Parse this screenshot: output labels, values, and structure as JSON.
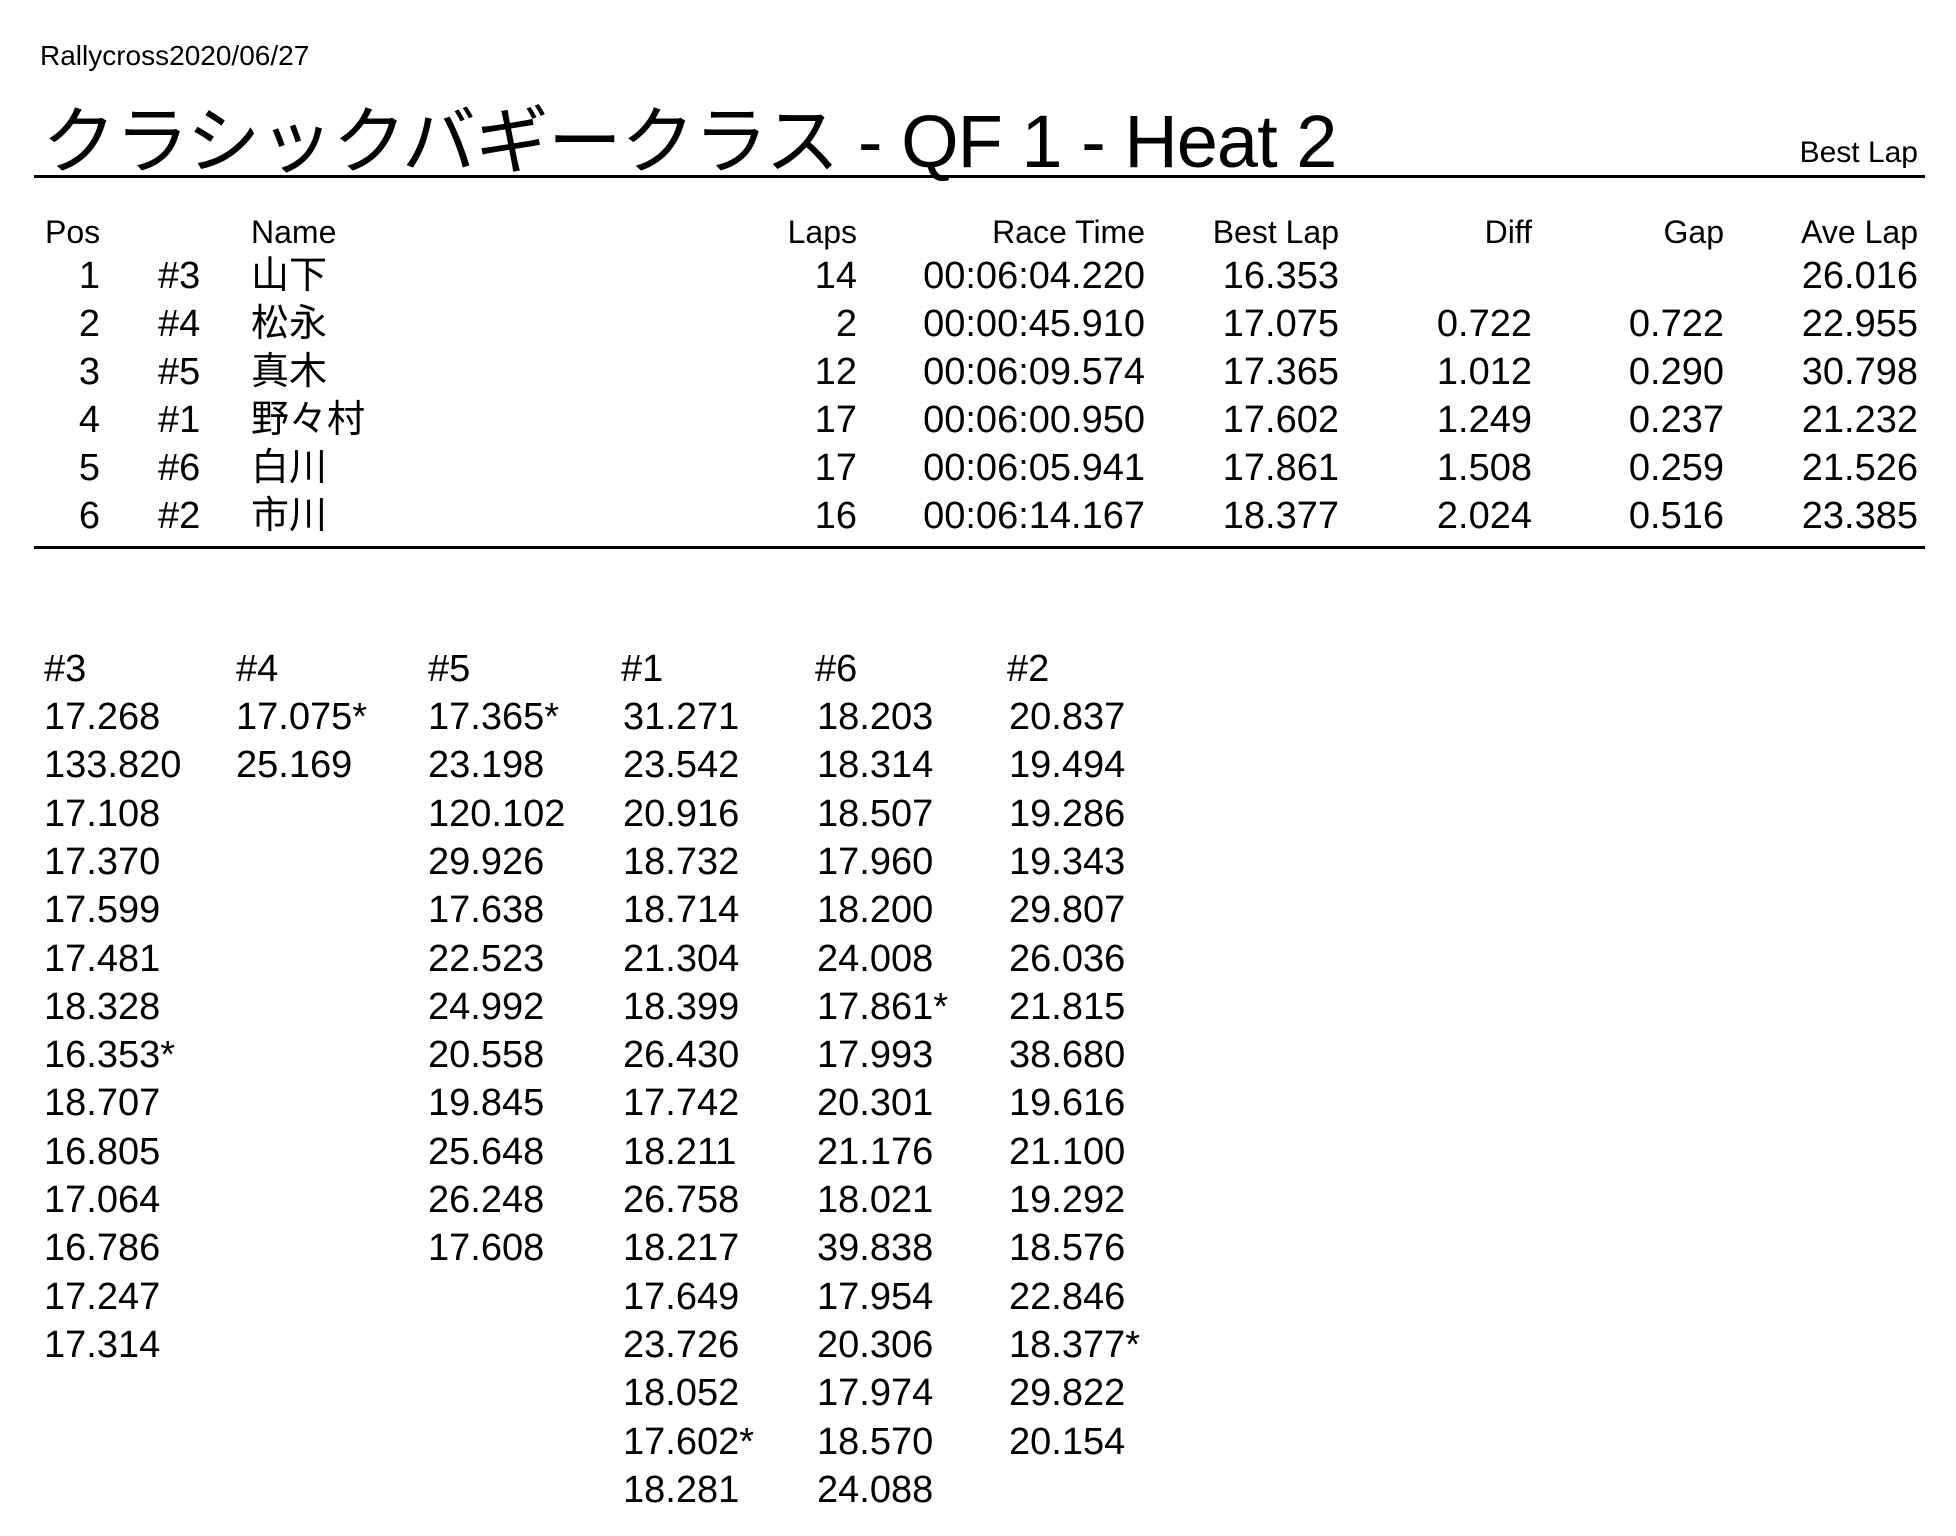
{
  "event": "Rallycross2020/06/27",
  "title": "クラシックバギークラス  -  QF 1  -  Heat 2",
  "sort_label": "Best Lap",
  "results": {
    "headers": {
      "pos": "Pos",
      "name": "Name",
      "laps": "Laps",
      "race_time": "Race Time",
      "best_lap": "Best Lap",
      "diff": "Diff",
      "gap": "Gap",
      "ave_lap": "Ave Lap"
    },
    "rows": [
      {
        "pos": "1",
        "num": "#3",
        "name": "山下",
        "laps": "14",
        "race_time": "00:06:04.220",
        "best_lap": "16.353",
        "diff": "",
        "gap": "",
        "ave_lap": "26.016"
      },
      {
        "pos": "2",
        "num": "#4",
        "name": "松永",
        "laps": "2",
        "race_time": "00:00:45.910",
        "best_lap": "17.075",
        "diff": "0.722",
        "gap": "0.722",
        "ave_lap": "22.955"
      },
      {
        "pos": "3",
        "num": "#5",
        "name": "真木",
        "laps": "12",
        "race_time": "00:06:09.574",
        "best_lap": "17.365",
        "diff": "1.012",
        "gap": "0.290",
        "ave_lap": "30.798"
      },
      {
        "pos": "4",
        "num": "#1",
        "name": "野々村",
        "laps": "17",
        "race_time": "00:06:00.950",
        "best_lap": "17.602",
        "diff": "1.249",
        "gap": "0.237",
        "ave_lap": "21.232"
      },
      {
        "pos": "5",
        "num": "#6",
        "name": "白川",
        "laps": "17",
        "race_time": "00:06:05.941",
        "best_lap": "17.861",
        "diff": "1.508",
        "gap": "0.259",
        "ave_lap": "21.526"
      },
      {
        "pos": "6",
        "num": "#2",
        "name": "市川",
        "laps": "16",
        "race_time": "00:06:14.167",
        "best_lap": "18.377",
        "diff": "2.024",
        "gap": "0.516",
        "ave_lap": "23.385"
      }
    ]
  },
  "lap_times": [
    {
      "car": "#3",
      "laps": [
        "17.268",
        "133.820",
        "17.108",
        "17.370",
        "17.599",
        "17.481",
        "18.328",
        "16.353*",
        "18.707",
        "16.805",
        "17.064",
        "16.786",
        "17.247",
        "17.314"
      ]
    },
    {
      "car": "#4",
      "laps": [
        "17.075*",
        "25.169"
      ]
    },
    {
      "car": "#5",
      "laps": [
        "17.365*",
        "23.198",
        "120.102",
        "29.926",
        "17.638",
        "22.523",
        "24.992",
        "20.558",
        "19.845",
        "25.648",
        "26.248",
        "17.608"
      ]
    },
    {
      "car": "#1",
      "laps": [
        "31.271",
        "23.542",
        "20.916",
        "18.732",
        "18.714",
        "21.304",
        "18.399",
        "26.430",
        "17.742",
        "18.211",
        "26.758",
        "18.217",
        "17.649",
        "23.726",
        "18.052",
        "17.602*",
        "18.281"
      ]
    },
    {
      "car": "#6",
      "laps": [
        "18.203",
        "18.314",
        "18.507",
        "17.960",
        "18.200",
        "24.008",
        "17.861*",
        "17.993",
        "20.301",
        "21.176",
        "18.021",
        "39.838",
        "17.954",
        "20.306",
        "17.974",
        "18.570",
        "24.088"
      ]
    },
    {
      "car": "#2",
      "laps": [
        "20.837",
        "19.494",
        "19.286",
        "19.343",
        "29.807",
        "26.036",
        "21.815",
        "38.680",
        "19.616",
        "21.100",
        "19.292",
        "18.576",
        "22.846",
        "18.377*",
        "29.822",
        "20.154"
      ]
    }
  ]
}
